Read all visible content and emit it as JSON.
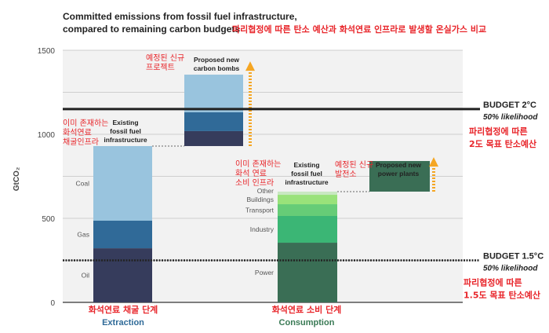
{
  "chart_data": {
    "type": "bar",
    "title": "Committed emissions from fossil fuel infrastructure,",
    "title_line2": "compared to remaining carbon budgets",
    "title_korean": "파리협정에 따른 탄소 예산과 화석연료 인프라로 발생할 온실가스 비교",
    "ylabel": "GtCO₂",
    "ylim": [
      0,
      1500
    ],
    "yticks": [
      0,
      500,
      1000,
      1500
    ],
    "grid_step": 250,
    "grid": true,
    "background": "#f2f2f2",
    "bars": [
      {
        "label": "Existing fossil fuel infrastructure",
        "label_korean": "이미 존재하는 화석연료 채굴인프라",
        "group": "extraction",
        "base": 0,
        "segments": [
          {
            "name": "Oil",
            "value": 322,
            "color": "#363c5c"
          },
          {
            "name": "Gas",
            "value": 164,
            "color": "#306a98"
          },
          {
            "name": "Coal",
            "value": 444,
            "color": "#99c4de"
          }
        ]
      },
      {
        "label": "Proposed new carbon bombs",
        "label_korean": "예정된 신규 프로젝트",
        "group": "extraction",
        "base": 930,
        "segments": [
          {
            "name": "",
            "value": 89,
            "color": "#363c5c"
          },
          {
            "name": "",
            "value": 112,
            "color": "#306a98"
          },
          {
            "name": "",
            "value": 224,
            "color": "#99c4de"
          }
        ]
      },
      {
        "label": "Existing fossil fuel infrastructure",
        "label_korean": "이미 존재하는 화석 연료 소비 인프라",
        "group": "consumption",
        "base": 0,
        "segments": [
          {
            "name": "Power",
            "value": 355,
            "color": "#3a6e55"
          },
          {
            "name": "Industry",
            "value": 159,
            "color": "#3bb675"
          },
          {
            "name": "Transport",
            "value": 70,
            "color": "#66cc77"
          },
          {
            "name": "Buildings",
            "value": 56,
            "color": "#99e27a"
          },
          {
            "name": "Other",
            "value": 19,
            "color": "#c9e8c2"
          }
        ]
      },
      {
        "label": "Proposed new power plants",
        "label_korean": "예정된 신규 발전소",
        "group": "consumption",
        "base": 659,
        "segments": [
          {
            "name": "",
            "value": 182,
            "color": "#3a6e55"
          }
        ]
      }
    ],
    "budgets": [
      {
        "label": "BUDGET 2°C",
        "sublabel": "50% likelihood",
        "korean": "파리협정에 따른",
        "korean2": "2도 목표 탄소예산",
        "value": 1150,
        "style": "solid"
      },
      {
        "label": "BUDGET 1.5°C",
        "sublabel": "50% likelihood",
        "korean": "파리협정에 따른",
        "korean2": "1.5도 목표 탄소예산",
        "value": 250,
        "style": "dotted"
      }
    ],
    "groups": [
      {
        "label": "Extraction",
        "korean": "화석연료 채굴 단계",
        "color": "#2f6a98"
      },
      {
        "label": "Consumption",
        "korean": "화석연료 소비 단계",
        "color": "#3a7a55"
      }
    ],
    "arrow_color": "#f5a623"
  }
}
